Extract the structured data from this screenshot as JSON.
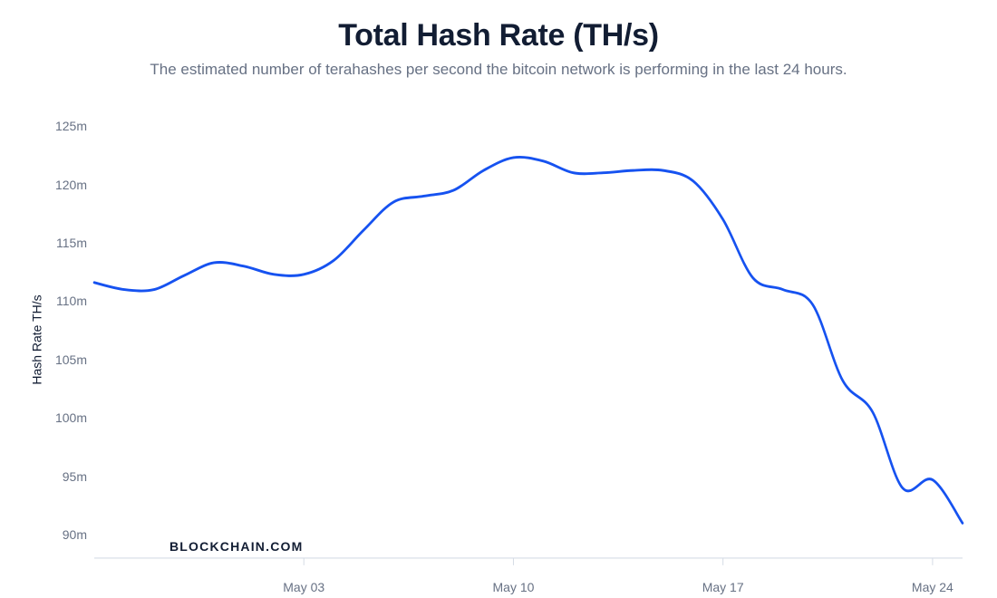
{
  "title": "Total Hash Rate (TH/s)",
  "subtitle": "The estimated number of terahashes per second the bitcoin network is performing in the last 24 hours.",
  "watermark": "BLOCKCHAIN.COM",
  "chart": {
    "type": "line",
    "y_axis": {
      "label": "Hash Rate TH/s",
      "min": 88,
      "max": 126,
      "ticks": [
        90,
        95,
        100,
        105,
        110,
        115,
        120,
        125
      ],
      "tick_labels": [
        "90m",
        "95m",
        "100m",
        "105m",
        "110m",
        "115m",
        "120m",
        "125m"
      ],
      "label_fontsize": 14,
      "tick_fontsize": 14,
      "tick_color": "#677184",
      "label_color": "#121d33"
    },
    "x_axis": {
      "min": 0,
      "max": 29,
      "ticks": [
        7,
        14,
        21,
        28
      ],
      "tick_labels": [
        "May 03",
        "May 10",
        "May 17",
        "May 24"
      ],
      "tick_fontsize": 14,
      "tick_color": "#677184"
    },
    "axis_line_color": "#d5dce6",
    "background_color": "#ffffff",
    "series": {
      "color": "#1652f0",
      "line_width": 2.6,
      "x": [
        0,
        1,
        2,
        3,
        4,
        5,
        6,
        7,
        8,
        9,
        10,
        11,
        12,
        13,
        14,
        15,
        16,
        17,
        18,
        19,
        20,
        21,
        22,
        23,
        24,
        25,
        26,
        27,
        28,
        29
      ],
      "y": [
        111.6,
        111.0,
        111.0,
        112.2,
        113.3,
        113.0,
        112.3,
        112.3,
        113.5,
        116.1,
        118.5,
        119.0,
        119.5,
        121.2,
        122.3,
        122.0,
        121.0,
        121.0,
        121.2,
        121.2,
        120.3,
        117.0,
        112.0,
        111.0,
        109.7,
        103.2,
        100.5,
        94.0,
        94.7,
        91.0
      ]
    },
    "title_fontsize": 34,
    "title_color": "#121d33",
    "subtitle_fontsize": 17,
    "subtitle_color": "#677184",
    "watermark_fontsize": 14,
    "watermark_color": "#121d33"
  }
}
